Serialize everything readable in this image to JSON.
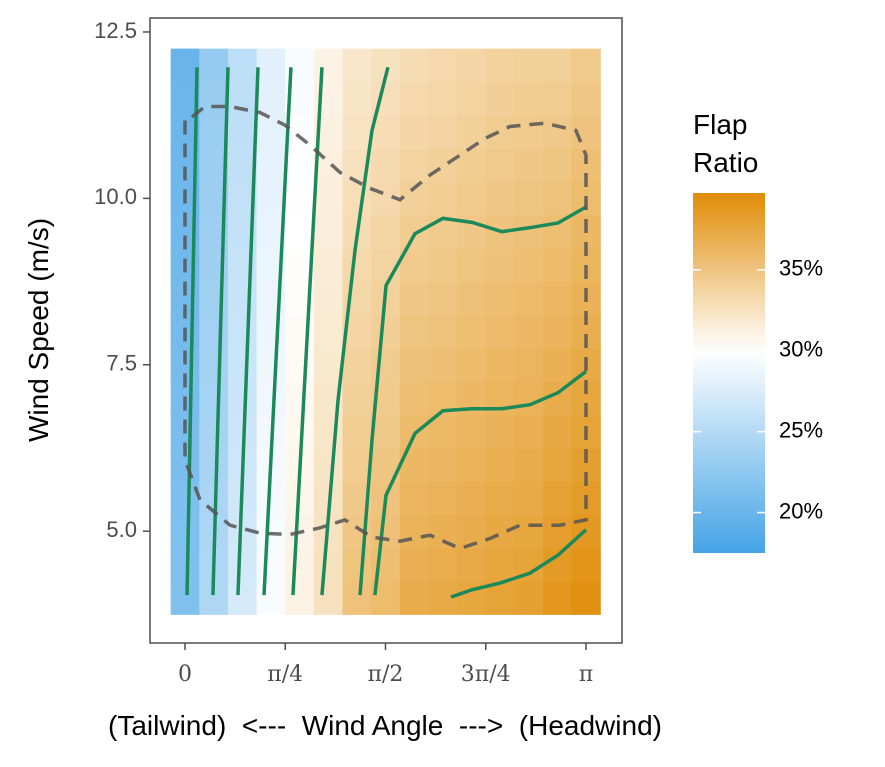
{
  "chart_data": {
    "type": "heatmap",
    "x_label": "(Tailwind)  <---  Wind Angle  --->  (Headwind)",
    "y_label": "Wind Speed (m/s)",
    "legend_title": "Flap Ratio",
    "x": [
      0,
      0.2244,
      0.4488,
      0.6732,
      0.8976,
      1.122,
      1.3464,
      1.5708,
      1.7952,
      2.0196,
      2.244,
      2.4684,
      2.6928,
      2.9172,
      3.1416
    ],
    "y": [
      4.0,
      4.5,
      5.0,
      5.5,
      6.0,
      6.5,
      7.0,
      7.5,
      8.0,
      8.5,
      9.0,
      9.5,
      10.0,
      10.5,
      11.0,
      11.5,
      12.0
    ],
    "z": [
      [
        21.6,
        24.6,
        27.1,
        29.6,
        31.1,
        32.6,
        35.2,
        35.7,
        37.0,
        37.2,
        37.5,
        37.8,
        38.0,
        38.8,
        39.3
      ],
      [
        21.5,
        24.5,
        27.0,
        29.5,
        31.0,
        32.5,
        35.0,
        35.5,
        36.75,
        36.95,
        37.25,
        37.55,
        37.75,
        38.5,
        39.0
      ],
      [
        21.4,
        24.4,
        26.9,
        29.4,
        30.9,
        32.4,
        34.8,
        35.3,
        36.5,
        36.7,
        37.0,
        37.3,
        37.5,
        38.2,
        38.7
      ],
      [
        21.3,
        24.3,
        26.8,
        29.3,
        30.8,
        32.3,
        34.6,
        35.1,
        36.25,
        36.45,
        36.75,
        37.05,
        37.25,
        37.9,
        38.4
      ],
      [
        21.2,
        24.2,
        26.7,
        29.2,
        30.7,
        32.2,
        34.4,
        34.9,
        36.0,
        36.2,
        36.5,
        36.8,
        37.0,
        37.6,
        38.1
      ],
      [
        21.1,
        24.1,
        26.6,
        29.1,
        30.6,
        32.1,
        34.2,
        34.7,
        35.75,
        35.95,
        36.25,
        36.55,
        36.75,
        37.3,
        37.8
      ],
      [
        21.0,
        24.0,
        26.5,
        29.0,
        30.5,
        32.0,
        34.0,
        34.5,
        35.5,
        35.7,
        36.0,
        36.3,
        36.5,
        37.0,
        37.5
      ],
      [
        20.9,
        23.9,
        26.4,
        28.9,
        30.4,
        31.9,
        33.8,
        34.3,
        35.25,
        35.45,
        35.75,
        36.05,
        36.25,
        36.7,
        37.2
      ],
      [
        20.8,
        23.8,
        26.3,
        28.8,
        30.3,
        31.8,
        33.6,
        34.1,
        35.0,
        35.2,
        35.5,
        35.8,
        36.0,
        36.4,
        36.9
      ],
      [
        20.7,
        23.7,
        26.2,
        28.7,
        30.2,
        31.7,
        33.4,
        33.9,
        34.75,
        34.95,
        35.25,
        35.55,
        35.75,
        36.1,
        36.6
      ],
      [
        20.6,
        23.6,
        26.1,
        28.6,
        30.1,
        31.6,
        33.2,
        33.7,
        34.5,
        34.7,
        35.0,
        35.3,
        35.5,
        35.8,
        36.3
      ],
      [
        20.5,
        23.5,
        26.0,
        28.5,
        30.0,
        31.5,
        33.0,
        33.5,
        34.25,
        34.45,
        34.75,
        35.05,
        35.25,
        35.5,
        36.0
      ],
      [
        20.4,
        23.4,
        25.9,
        28.4,
        29.9,
        31.4,
        32.8,
        33.3,
        34.0,
        34.2,
        34.5,
        34.8,
        35.0,
        35.2,
        35.7
      ],
      [
        20.3,
        23.3,
        25.8,
        28.3,
        29.8,
        31.3,
        32.6,
        33.1,
        33.75,
        33.95,
        34.25,
        34.55,
        34.75,
        34.9,
        35.4
      ],
      [
        20.2,
        23.2,
        25.7,
        28.2,
        29.7,
        31.2,
        32.4,
        32.9,
        33.5,
        33.7,
        34.0,
        34.3,
        34.5,
        34.6,
        35.1
      ],
      [
        20.1,
        23.1,
        25.6,
        28.1,
        29.6,
        31.1,
        32.2,
        32.7,
        33.25,
        33.45,
        33.75,
        34.05,
        34.25,
        34.3,
        34.8
      ],
      [
        20.0,
        23.0,
        25.5,
        28.0,
        29.5,
        31.0,
        32.0,
        32.5,
        33.0,
        33.2,
        33.5,
        33.8,
        34.0,
        34.0,
        34.5
      ]
    ],
    "color_limits": [
      17.5,
      39.75
    ],
    "color_midpoint": 30,
    "colors": [
      "#44a3e6",
      "#ffffff",
      "#e08c06"
    ],
    "colorbar_ticks": [
      {
        "value": 20,
        "label": "20%"
      },
      {
        "value": 25,
        "label": "25%"
      },
      {
        "value": 30,
        "label": "30%"
      },
      {
        "value": 35,
        "label": "35%"
      }
    ],
    "xlim": [
      -0.2742,
      3.4237
    ],
    "ylim": [
      3.32,
      12.71
    ],
    "xticks": [
      0,
      {
        "value": 0.7854,
        "label": "π/4"
      },
      {
        "value": 1.5708,
        "label": "π/2"
      },
      {
        "value": 2.3562,
        "label": "3π/4"
      },
      {
        "value": 3.1416,
        "label": "π"
      }
    ],
    "yticks": [
      {
        "value": 5,
        "label": "5.0"
      },
      7.5,
      {
        "value": 10,
        "label": "10.0"
      },
      12.5
    ],
    "contour_color": "#1a8a5a",
    "contours": [
      {
        "x": [
          0.016,
          0.094
        ],
        "y": [
          4.04,
          11.97
        ]
      },
      {
        "x": [
          0.219,
          0.337
        ],
        "y": [
          4.04,
          11.97
        ]
      },
      {
        "x": [
          0.415,
          0.572
        ],
        "y": [
          4.04,
          11.97
        ]
      },
      {
        "x": [
          0.619,
          0.83
        ],
        "y": [
          4.04,
          11.97
        ]
      },
      {
        "x": [
          0.846,
          1.073
        ],
        "y": [
          4.04,
          11.97
        ]
      },
      {
        "x": [
          1.073,
          1.199,
          1.332,
          1.465,
          1.59
        ],
        "y": [
          4.04,
          6.97,
          9.22,
          11.02,
          11.97
        ]
      },
      {
        "x": [
          1.371,
          1.465,
          1.575,
          1.802,
          2.021,
          2.248,
          2.483,
          2.703,
          2.922,
          3.1416
        ],
        "y": [
          4.04,
          6.37,
          8.69,
          9.47,
          9.7,
          9.64,
          9.5,
          9.56,
          9.63,
          9.87
        ]
      },
      {
        "x": [
          1.488,
          1.575,
          1.802,
          2.021,
          2.248,
          2.483,
          2.703,
          2.922,
          3.1416
        ],
        "y": [
          4.04,
          5.54,
          6.47,
          6.81,
          6.84,
          6.84,
          6.9,
          7.08,
          7.4
        ]
      },
      {
        "x": [
          2.084,
          2.248,
          2.468,
          2.703,
          2.922,
          3.1416
        ],
        "y": [
          4.01,
          4.12,
          4.22,
          4.37,
          4.64,
          5.02
        ]
      }
    ],
    "boundary_color": "#555555",
    "boundary": {
      "x": [
        0,
        0,
        0.1175,
        0.3525,
        0.5876,
        0.8226,
        1.0576,
        1.2534,
        1.465,
        1.6843,
        1.9193,
        2.1544,
        2.3894,
        2.6244,
        2.9378,
        3.1416,
        3.1416,
        3.063,
        2.8202,
        2.546,
        2.3502,
        2.1544,
        1.9193,
        1.6843,
        1.4493,
        1.2143,
        0.9793,
        0.7834,
        0.5876,
        0.3525,
        0.157,
        0.039,
        0
      ],
      "y": [
        11.17,
        6.07,
        5.47,
        5.09,
        4.97,
        4.95,
        5.05,
        5.17,
        4.91,
        4.85,
        4.94,
        4.74,
        4.89,
        5.09,
        5.09,
        5.17,
        10.65,
        11.02,
        11.13,
        11.08,
        10.9,
        10.65,
        10.35,
        9.98,
        10.15,
        10.39,
        10.8,
        11.1,
        11.29,
        11.38,
        11.38,
        11.2,
        11.17
      ]
    }
  }
}
